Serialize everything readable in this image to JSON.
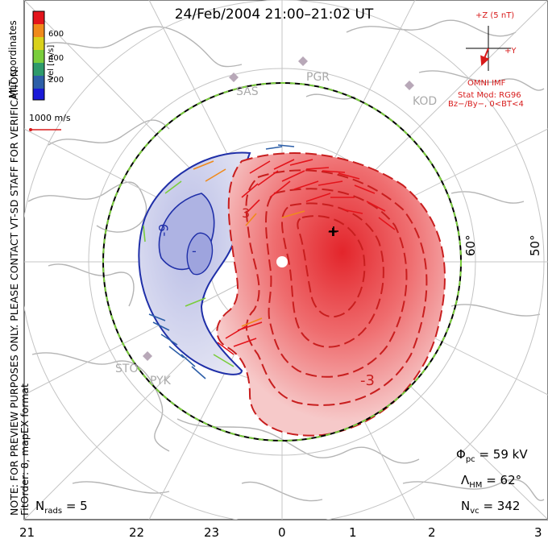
{
  "title": "24/Feb/2004 21:00–21:02 UT",
  "coordinates_label": "MLT coordinates",
  "note": "NOTE: FOR PREVIEW PURPOSES ONLY. PLEASE CONTACT VT-SD STAFF FOR VERIFICATION.",
  "fit_label": "FitOrder: 8, mapEX format",
  "colorbar": {
    "label": "Vel [m/s]",
    "ticks": [
      "600",
      "400",
      "200"
    ],
    "colors": [
      "#e3141b",
      "#f08a1b",
      "#d9d11b",
      "#7acd3c",
      "#2e9a6b",
      "#2d5fa8",
      "#1a1ad8"
    ]
  },
  "scale_vector": {
    "label": "1000 m/s",
    "color": "#d81b1b"
  },
  "imf": {
    "z_label": "+Z (5 nT)",
    "y_label": "+Y",
    "source": "OMNI IMF",
    "stat_model": "Stat Mod: RG96",
    "condition": "Bz−/By−, 0<BT<4",
    "color": "#d81b1b"
  },
  "stations": [
    "SAS",
    "PGR",
    "KOD",
    "STO",
    "PYK"
  ],
  "latitude_labels": [
    "60°",
    "50°"
  ],
  "mlt_ticks": [
    "21",
    "22",
    "23",
    "0",
    "1",
    "2",
    "3"
  ],
  "contour_labels": [
    "-9",
    "-",
    "+",
    "3",
    "-3"
  ],
  "stats": {
    "phi_pc": {
      "symbol": "Φ",
      "sub": "pc",
      "value": "= 59 kV"
    },
    "lambda_hm": {
      "symbol": "Λ",
      "sub": "HM",
      "value": "= 62°"
    },
    "n_vc": {
      "symbol": "N",
      "sub": "vc",
      "value": "= 342"
    },
    "n_rads": {
      "symbol": "N",
      "sub": "rads",
      "value": "= 5"
    }
  },
  "colors": {
    "positive_cell": "#e8383a",
    "negative_cell": "#c9cbe8",
    "negative_line": "#1f2fa8",
    "positive_line": "#c81e1e",
    "hm_boundary": "#7acd3c"
  }
}
